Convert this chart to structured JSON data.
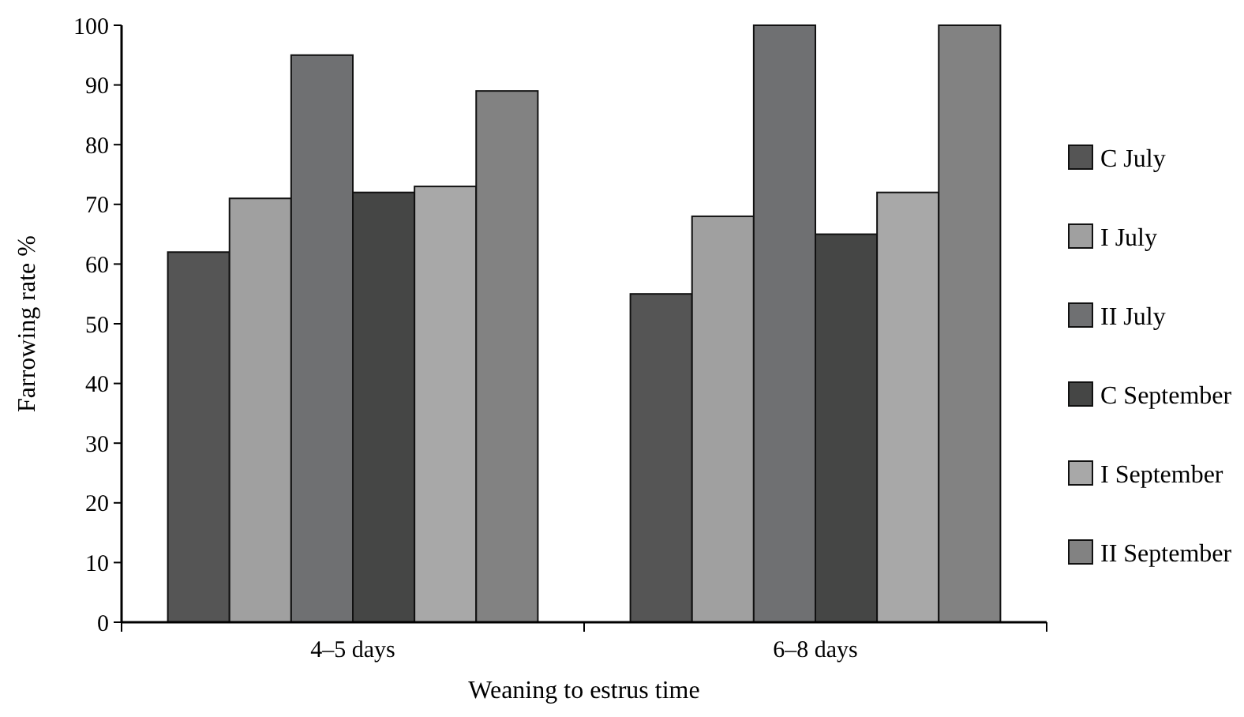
{
  "chart_data": {
    "type": "bar",
    "xlabel": "Weaning to estrus time",
    "ylabel": "Farrowing rate %",
    "categories": [
      "4–5 days",
      "6–8 days"
    ],
    "series": [
      {
        "name": "C July",
        "color": "#555555",
        "values": [
          62,
          55
        ]
      },
      {
        "name": "I July",
        "color": "#a0a0a0",
        "values": [
          71,
          68
        ]
      },
      {
        "name": "II July",
        "color": "#6f7072",
        "values": [
          95,
          100
        ]
      },
      {
        "name": "C September",
        "color": "#454645",
        "values": [
          72,
          65
        ]
      },
      {
        "name": "I September",
        "color": "#a8a8a8",
        "values": [
          73,
          72
        ]
      },
      {
        "name": "II September",
        "color": "#828282",
        "values": [
          89,
          100
        ]
      }
    ],
    "ylim": [
      0,
      100
    ],
    "yticks": [
      0,
      10,
      20,
      30,
      40,
      50,
      60,
      70,
      80,
      90,
      100
    ],
    "grid": false,
    "legend": "right"
  }
}
